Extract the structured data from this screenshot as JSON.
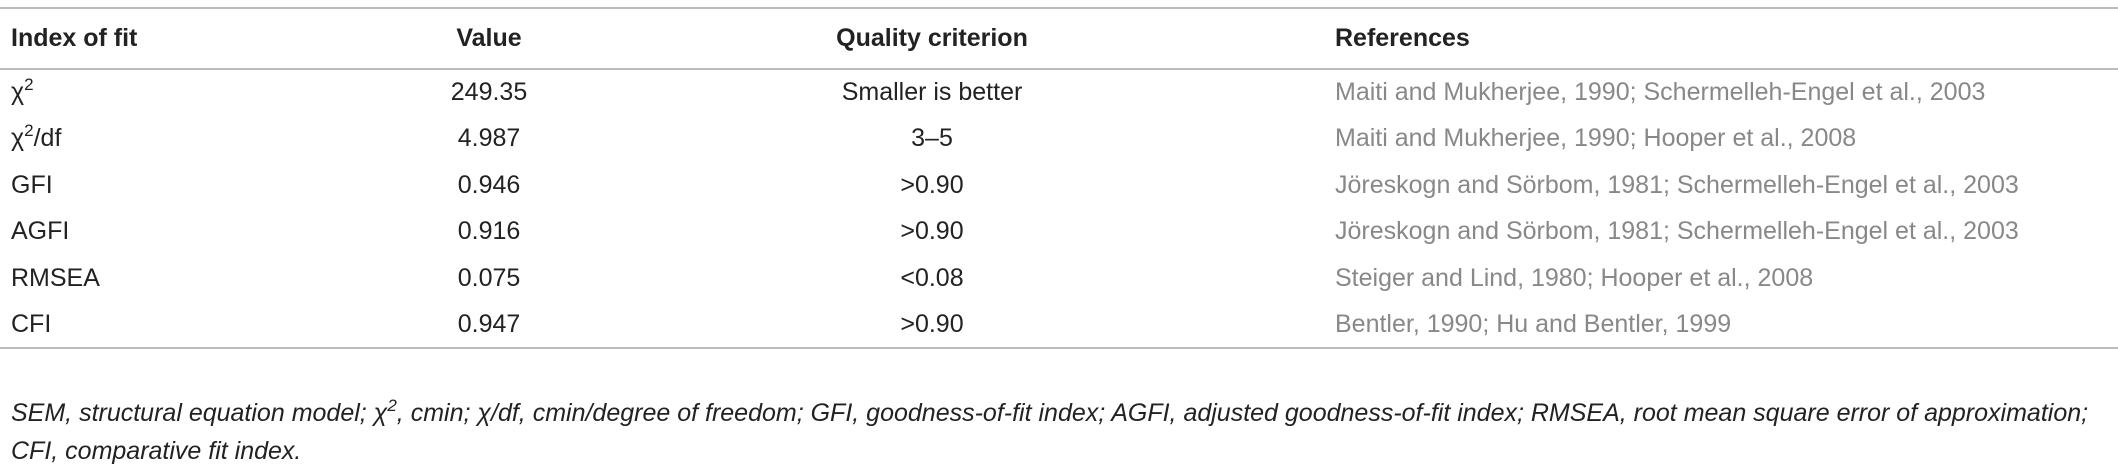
{
  "table": {
    "header": [
      "Index of fit",
      "Value",
      "Quality criterion",
      "References"
    ],
    "rows": [
      [
        {
          "text": "χ",
          "sup": "2"
        },
        "249.35",
        "Smaller is better",
        "Maiti and Mukherjee, 1990; Schermelleh-Engel et al., 2003"
      ],
      [
        {
          "text": "χ",
          "sup": "2",
          "after": "/df"
        },
        "4.987",
        "3–5",
        "Maiti and Mukherjee, 1990; Hooper et al., 2008"
      ],
      [
        "GFI",
        "0.946",
        ">0.90",
        "Jöreskogn and Sörbom, 1981; Schermelleh-Engel et al., 2003"
      ],
      [
        "AGFI",
        "0.916",
        ">0.90",
        "Jöreskogn and Sörbom, 1981; Schermelleh-Engel et al., 2003"
      ],
      [
        "RMSEA",
        "0.075",
        "<0.08",
        "Steiger and Lind, 1980; Hooper et al., 2008"
      ],
      [
        "CFI",
        "0.947",
        ">0.90",
        "Bentler, 1990; Hu and Bentler, 1999"
      ]
    ],
    "footnote": {
      "text": "SEM, structural equation model; χ",
      "sup": "2",
      "after": ", cmin; χ/df, cmin/degree of freedom; GFI, goodness-of-fit index; AGFI, adjusted goodness-of-fit index; RMSEA, root mean square error of approximation; CFI, comparative fit index."
    }
  }
}
